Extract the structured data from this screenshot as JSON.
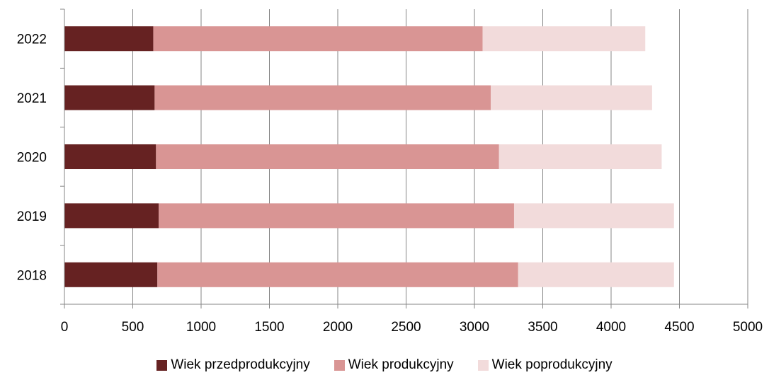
{
  "chart_data": {
    "type": "bar",
    "orientation": "horizontal",
    "stacked": true,
    "categories": [
      "2022",
      "2021",
      "2020",
      "2019",
      "2018"
    ],
    "series": [
      {
        "name": "Wiek przedprodukcyjny",
        "color": "#662222",
        "values": [
          650,
          660,
          670,
          690,
          680
        ]
      },
      {
        "name": "Wiek produkcyjny",
        "color": "#d99594",
        "values": [
          2410,
          2460,
          2510,
          2600,
          2640
        ]
      },
      {
        "name": "Wiek poprodukcyjny",
        "color": "#f2dbdb",
        "values": [
          1190,
          1180,
          1190,
          1170,
          1140
        ]
      }
    ],
    "x_ticks": [
      "0",
      "500",
      "1000",
      "1500",
      "2000",
      "2500",
      "3000",
      "3500",
      "4000",
      "4500",
      "5000"
    ],
    "xlim": [
      0,
      5000
    ],
    "grid": true,
    "legend_position": "bottom"
  }
}
